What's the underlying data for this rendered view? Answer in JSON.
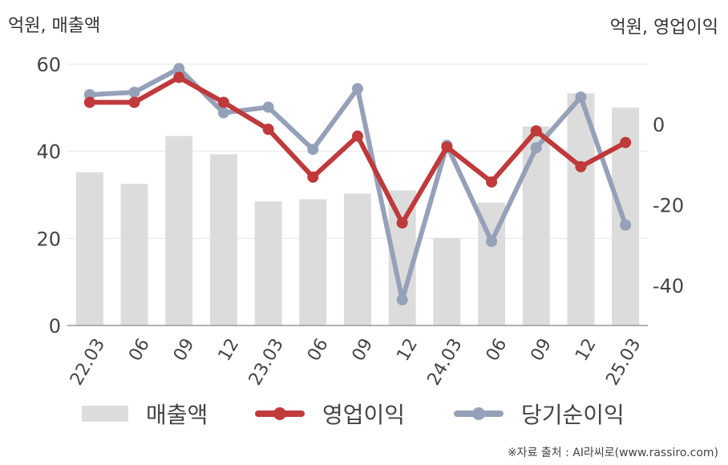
{
  "header": {
    "left_unit": "억원, 매출액",
    "right_unit": "억원, 영업이익"
  },
  "legend": {
    "sales_label": "매출액",
    "op_label": "영업이익",
    "net_label": "당기순이익"
  },
  "footer": {
    "source": "※자료 출처 : AI라씨로(www.rassiro.com)"
  },
  "colors": {
    "sales": "#dcdcdc",
    "op": "#c0393b",
    "net": "#95a1b9"
  },
  "chart_data": {
    "type": "bar",
    "categories": [
      "22.03",
      "06",
      "09",
      "12",
      "23.03",
      "06",
      "09",
      "12",
      "24.03",
      "06",
      "09",
      "12",
      "25.03"
    ],
    "left_axis": {
      "label": "억원, 매출액",
      "ylim": [
        0,
        60
      ],
      "ticks": [
        0,
        20,
        40,
        60
      ]
    },
    "right_axis": {
      "label": "억원, 영업이익",
      "ylim": [
        -50,
        15
      ],
      "ticks": [
        0,
        -20,
        -40
      ]
    },
    "series": [
      {
        "name": "매출액",
        "type": "bar",
        "axis": "left",
        "values": [
          35.2,
          32.5,
          43.5,
          39.3,
          28.5,
          29.0,
          30.3,
          31.0,
          20.1,
          28.2,
          45.7,
          53.3,
          50.0
        ]
      },
      {
        "name": "영업이익",
        "type": "line",
        "axis": "right",
        "values": [
          5.5,
          5.5,
          11.7,
          5.5,
          -1.2,
          -13.1,
          -2.9,
          -24.5,
          -5.6,
          -14.3,
          -1.6,
          -10.5,
          -4.5
        ]
      },
      {
        "name": "당기순이익",
        "type": "line",
        "axis": "right",
        "values": [
          7.4,
          8.0,
          13.9,
          2.9,
          4.3,
          -6.2,
          8.9,
          -43.6,
          -5.2,
          -29.1,
          -5.8,
          6.8,
          -25.0
        ]
      }
    ],
    "grid": true,
    "legend_position": "bottom"
  }
}
